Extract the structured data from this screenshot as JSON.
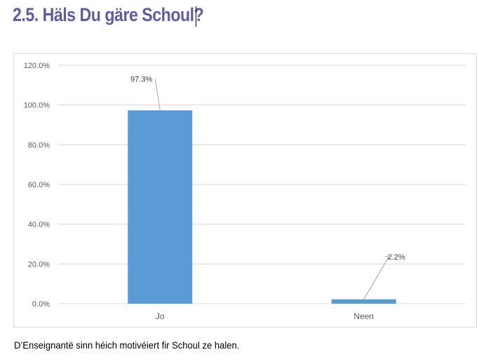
{
  "heading": "2.5. Häls Du gäre Schoul?",
  "caption": "D’Enseignantë sinn héich motivéiert fir Schoul ze halen.",
  "colors": {
    "bar": "#5b9bd5",
    "heading": "#5b5ea6",
    "grid": "#d9d9d9",
    "leader": "#a6a6a6"
  },
  "chart_data": {
    "type": "bar",
    "categories": [
      "Jo",
      "Neen"
    ],
    "values": [
      97.3,
      2.2
    ],
    "data_labels": [
      "97.3%",
      "2.2%"
    ],
    "ylim": [
      0,
      120
    ],
    "yticks": [
      "0.0%",
      "20.0%",
      "40.0%",
      "60.0%",
      "80.0%",
      "100.0%",
      "120.0%"
    ],
    "grid": true,
    "legend": "none"
  }
}
